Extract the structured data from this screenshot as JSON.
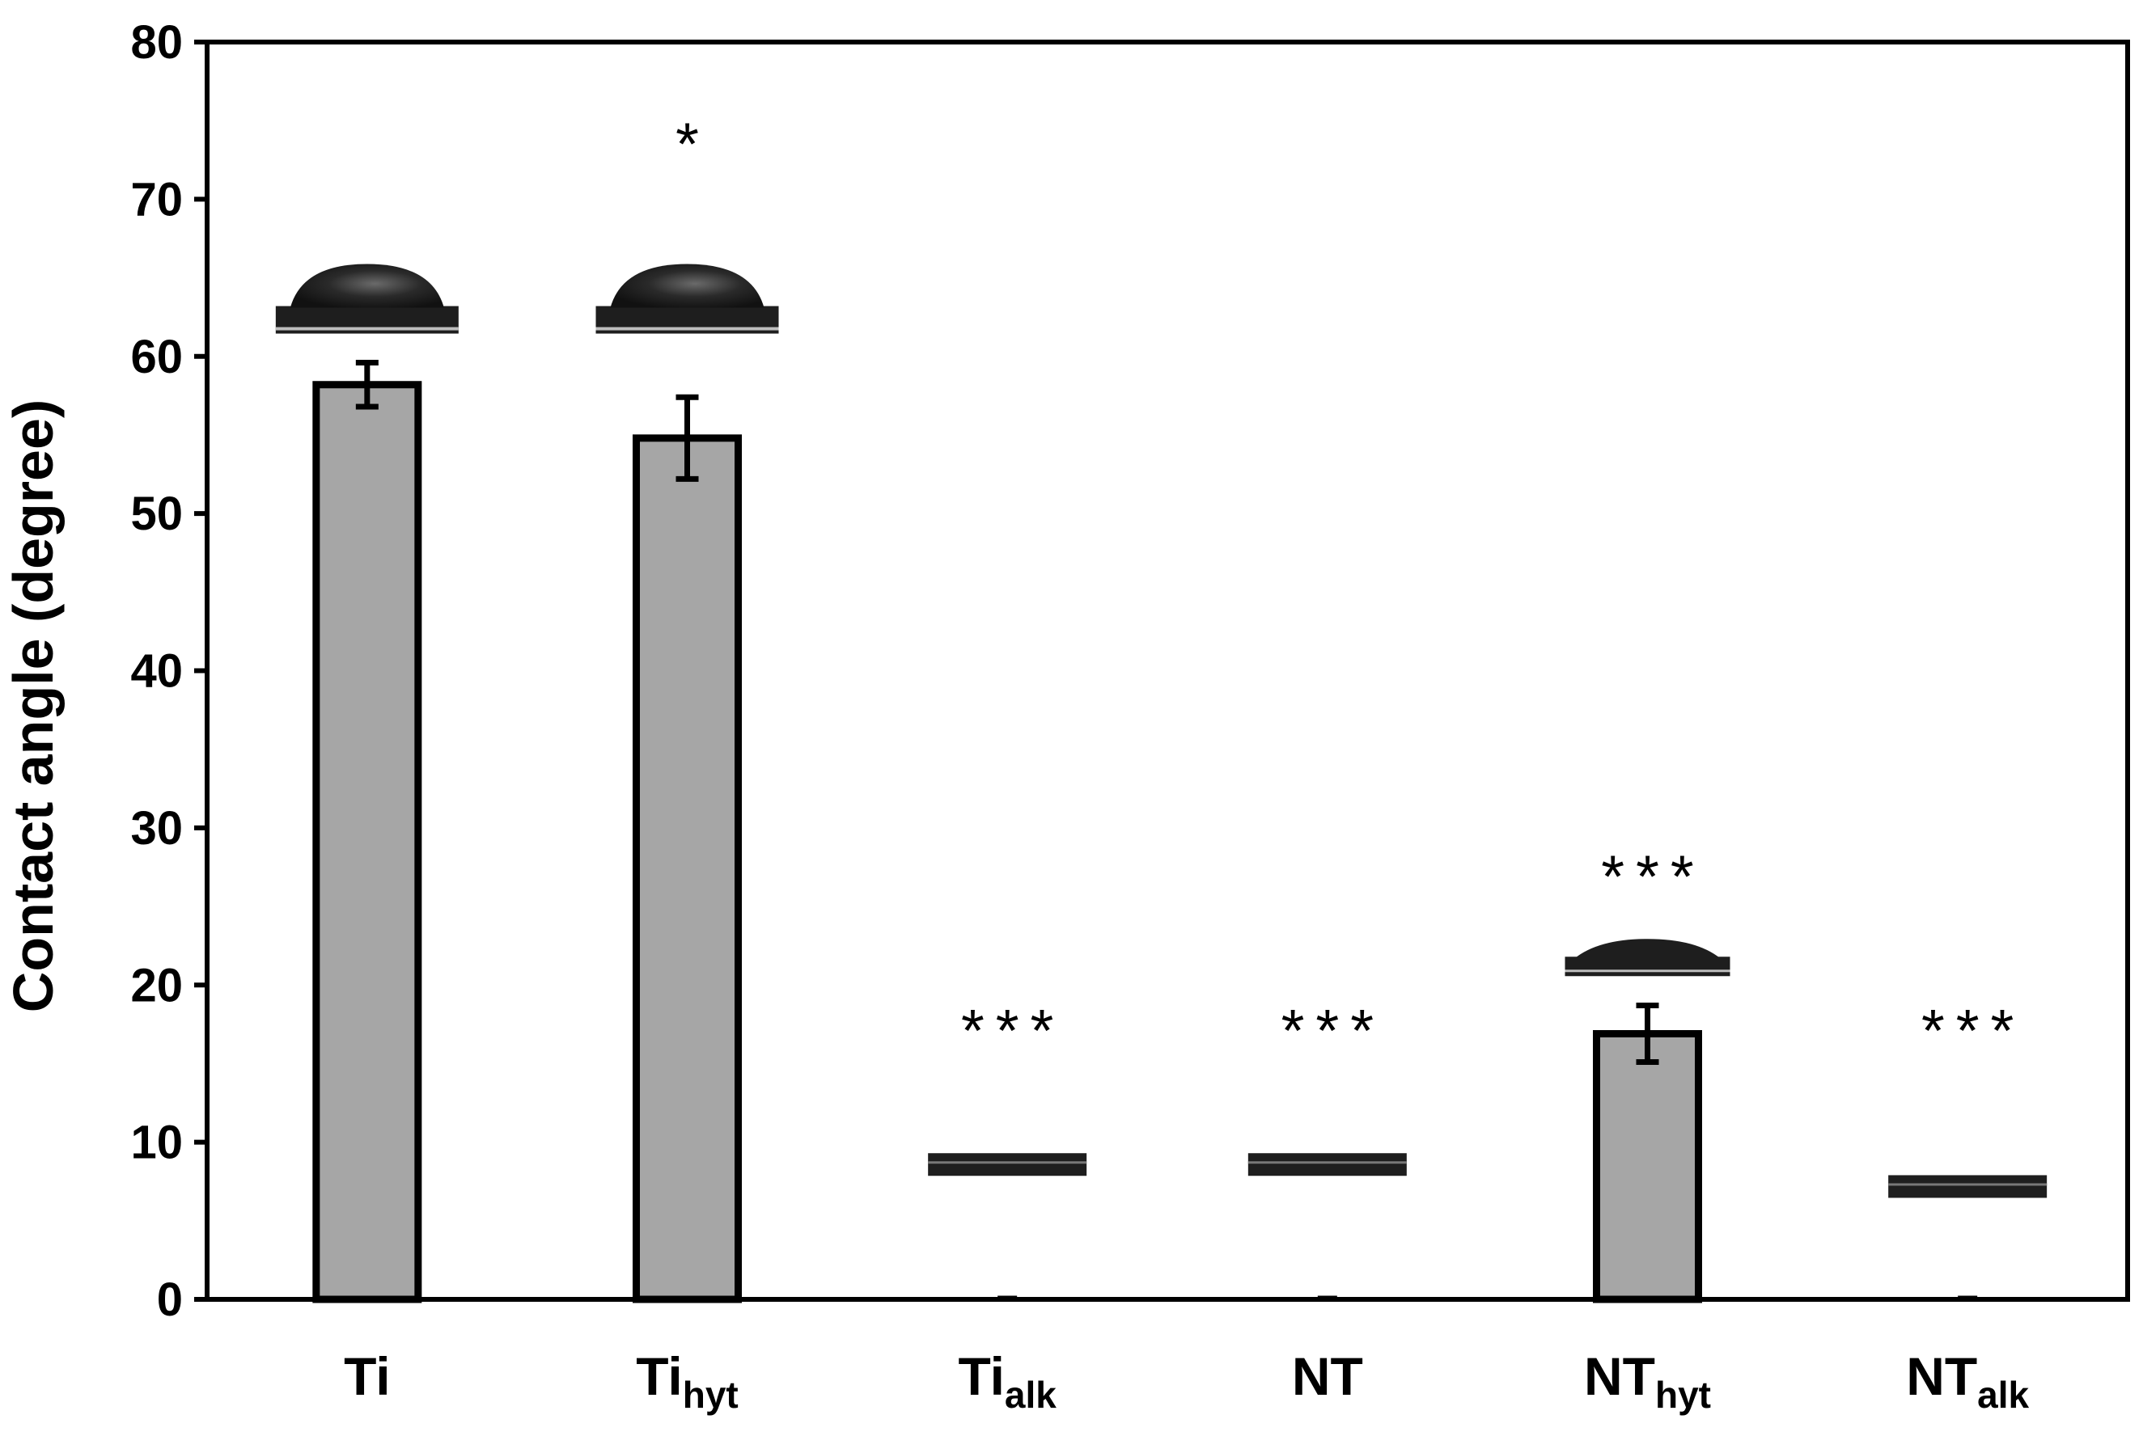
{
  "chart_data": {
    "type": "bar",
    "title": "",
    "xlabel": "",
    "ylabel": "Contact angle (degree)",
    "ylim": [
      0,
      80
    ],
    "yticks": [
      0,
      10,
      20,
      30,
      40,
      50,
      60,
      70,
      80
    ],
    "grid": false,
    "categories": [
      {
        "main": "Ti",
        "sub": ""
      },
      {
        "main": "Ti",
        "sub": "hyt"
      },
      {
        "main": "Ti",
        "sub": "alk"
      },
      {
        "main": "NT",
        "sub": ""
      },
      {
        "main": "NT",
        "sub": "hyt"
      },
      {
        "main": "NT",
        "sub": "alk"
      }
    ],
    "values": [
      58.2,
      54.8,
      0,
      0,
      16.9,
      0
    ],
    "errors": [
      1.4,
      2.6,
      0,
      0,
      1.8,
      0
    ],
    "significance": [
      "",
      "*",
      "***",
      "***",
      "***",
      "***"
    ],
    "droplet_images": [
      "sessile-drop",
      "sessile-drop",
      "flat-film",
      "flat-film",
      "sessile-drop-low",
      "flat-film"
    ]
  },
  "colors": {
    "bar_fill": "#a6a6a6",
    "bar_stroke": "#000000",
    "axis": "#000000",
    "background": "#ffffff",
    "droplet": "#1e1e1e"
  }
}
